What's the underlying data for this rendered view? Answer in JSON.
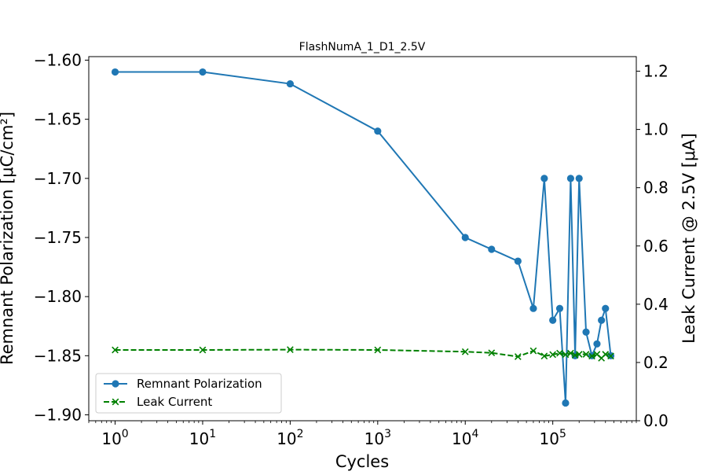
{
  "chart_data": {
    "type": "line",
    "title": "FlashNumA_1_D1_2.5V",
    "xlabel": "Cycles",
    "ylabel_left": "Remnant Polarization [μC/cm²]",
    "ylabel_right": "Leak Current @ 2.5V [μA]",
    "xscale": "log",
    "xlim": [
      0.5,
      900000
    ],
    "ylim_left": [
      -1.905,
      -1.597
    ],
    "ylim_right": [
      0.0,
      1.25
    ],
    "xticks": [
      {
        "value": 1,
        "base": "10",
        "exp": "0"
      },
      {
        "value": 10,
        "base": "10",
        "exp": "1"
      },
      {
        "value": 100,
        "base": "10",
        "exp": "2"
      },
      {
        "value": 1000,
        "base": "10",
        "exp": "3"
      },
      {
        "value": 10000,
        "base": "10",
        "exp": "4"
      },
      {
        "value": 100000,
        "base": "10",
        "exp": "5"
      }
    ],
    "yticks_left": [
      "−1.60",
      "−1.65",
      "−1.70",
      "−1.75",
      "−1.80",
      "−1.85",
      "−1.90"
    ],
    "yticks_left_values": [
      -1.6,
      -1.65,
      -1.7,
      -1.75,
      -1.8,
      -1.85,
      -1.9
    ],
    "yticks_right": [
      "0.0",
      "0.2",
      "0.4",
      "0.6",
      "0.8",
      "1.0",
      "1.2"
    ],
    "yticks_right_values": [
      0.0,
      0.2,
      0.4,
      0.6,
      0.8,
      1.0,
      1.2
    ],
    "legend_position": "lower-left",
    "grid": false,
    "series": [
      {
        "name": "Remnant Polarization",
        "axis": "left",
        "color": "#1f77b4",
        "marker": "circle",
        "linestyle": "solid",
        "x": [
          1,
          10,
          100,
          1000,
          10000,
          20000,
          40000,
          60000,
          80000,
          100000,
          120000,
          140000,
          160000,
          180000,
          200000,
          240000,
          280000,
          320000,
          360000,
          400000,
          460000
        ],
        "y": [
          -1.61,
          -1.61,
          -1.62,
          -1.66,
          -1.75,
          -1.76,
          -1.77,
          -1.81,
          -1.7,
          -1.82,
          -1.81,
          -1.89,
          -1.7,
          -1.85,
          -1.7,
          -1.83,
          -1.85,
          -1.84,
          -1.82,
          -1.81,
          -1.85
        ]
      },
      {
        "name": "Leak Current",
        "axis": "right",
        "color": "#008000",
        "marker": "x",
        "linestyle": "dashed",
        "x": [
          1,
          10,
          100,
          1000,
          10000,
          20000,
          40000,
          60000,
          80000,
          100000,
          120000,
          140000,
          160000,
          180000,
          200000,
          240000,
          280000,
          320000,
          360000,
          400000,
          460000
        ],
        "y": [
          0.243,
          0.243,
          0.244,
          0.243,
          0.237,
          0.233,
          0.22,
          0.24,
          0.222,
          0.227,
          0.232,
          0.227,
          0.232,
          0.225,
          0.228,
          0.228,
          0.222,
          0.228,
          0.215,
          0.228,
          0.222
        ]
      }
    ]
  }
}
